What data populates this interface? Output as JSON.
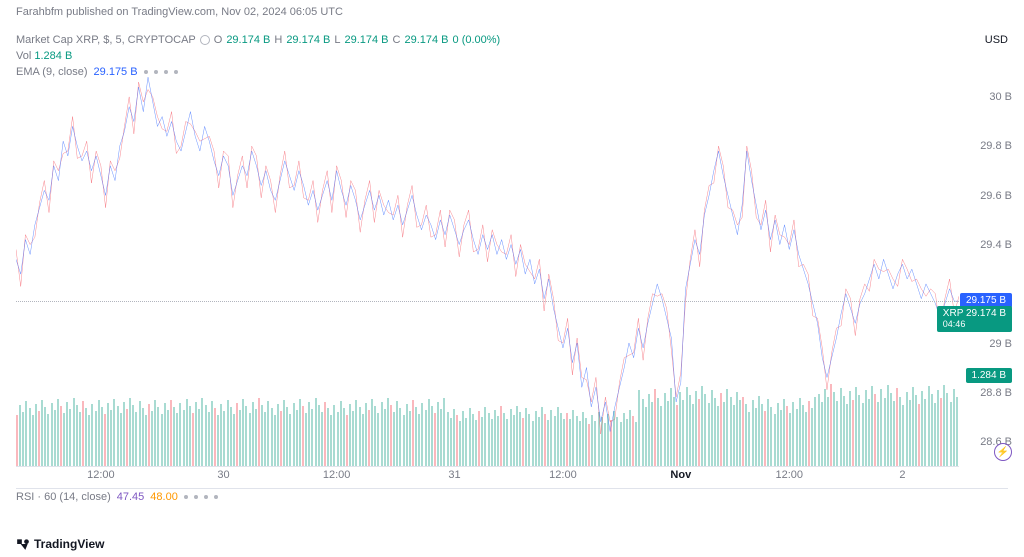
{
  "published": "Farahbfm published on TradingView.com, Nov 02, 2024 06:05 UTC",
  "symbol": {
    "name": "Market Cap XRP, $, 5, CRYPTOCAP",
    "o_label": "O",
    "o_val": "29.174 B",
    "h_label": "H",
    "h_val": "29.174 B",
    "l_label": "L",
    "l_val": "29.174 B",
    "c_label": "C",
    "c_val": "29.174 B",
    "pct": "0 (0.00%)"
  },
  "vol": {
    "label": "Vol",
    "value": "1.284 B"
  },
  "ema": {
    "label": "EMA (9, close)",
    "value": "29.175 B"
  },
  "currency": "USD",
  "y_axis": {
    "ticks": [
      {
        "label": "30 B",
        "value": 30.0
      },
      {
        "label": "29.8 B",
        "value": 29.8
      },
      {
        "label": "29.6 B",
        "value": 29.6
      },
      {
        "label": "29.4 B",
        "value": 29.4
      },
      {
        "label": "29 B",
        "value": 29.0
      },
      {
        "label": "28.8 B",
        "value": 28.8
      },
      {
        "label": "28.6 B",
        "value": 28.6
      }
    ],
    "min": 28.5,
    "max": 30.15
  },
  "x_axis": {
    "ticks": [
      {
        "label": "12:00",
        "pct": 9,
        "bold": false
      },
      {
        "label": "30",
        "pct": 22,
        "bold": false
      },
      {
        "label": "12:00",
        "pct": 34,
        "bold": false
      },
      {
        "label": "31",
        "pct": 46.5,
        "bold": false
      },
      {
        "label": "12:00",
        "pct": 58,
        "bold": false
      },
      {
        "label": "Nov",
        "pct": 70.5,
        "bold": true
      },
      {
        "label": "12:00",
        "pct": 82,
        "bold": false
      },
      {
        "label": "2",
        "pct": 94,
        "bold": false
      }
    ]
  },
  "price_tags": [
    {
      "text": "29.175 B",
      "bg": "#2962ff",
      "y_value": 29.175
    },
    {
      "text": "XRP  29.174 B",
      "bg": "#089981",
      "y_value": 29.12,
      "sub": "04:46"
    },
    {
      "text": "1.284 B",
      "bg": "#089981",
      "y_value": 28.87
    }
  ],
  "dotted_line_y": 29.174,
  "line_color_main": "#2962ff",
  "line_color_alt": "#f23645",
  "volume_fill": "#b2dfdb",
  "price_series": [
    [
      0,
      29.34
    ],
    [
      0.5,
      29.28
    ],
    [
      1,
      29.42
    ],
    [
      1.5,
      29.36
    ],
    [
      2,
      29.48
    ],
    [
      2.5,
      29.55
    ],
    [
      3,
      29.62
    ],
    [
      3.5,
      29.58
    ],
    [
      4,
      29.72
    ],
    [
      4.5,
      29.66
    ],
    [
      5,
      29.82
    ],
    [
      5.5,
      29.76
    ],
    [
      6,
      29.88
    ],
    [
      6.5,
      29.8
    ],
    [
      7,
      29.74
    ],
    [
      7.5,
      29.78
    ],
    [
      8,
      29.7
    ],
    [
      8.5,
      29.76
    ],
    [
      9,
      29.68
    ],
    [
      9.5,
      29.6
    ],
    [
      10,
      29.72
    ],
    [
      10.5,
      29.66
    ],
    [
      11,
      29.8
    ],
    [
      11.5,
      29.86
    ],
    [
      12,
      29.96
    ],
    [
      12.5,
      29.9
    ],
    [
      13,
      30.04
    ],
    [
      13.5,
      29.94
    ],
    [
      14,
      30.08
    ],
    [
      14.5,
      29.98
    ],
    [
      15,
      29.88
    ],
    [
      15.5,
      29.92
    ],
    [
      16,
      29.84
    ],
    [
      16.5,
      29.9
    ],
    [
      17,
      29.82
    ],
    [
      17.5,
      29.78
    ],
    [
      18,
      29.86
    ],
    [
      18.5,
      29.94
    ],
    [
      19,
      29.84
    ],
    [
      19.5,
      29.78
    ],
    [
      20,
      29.88
    ],
    [
      20.5,
      29.82
    ],
    [
      21,
      29.74
    ],
    [
      21.5,
      29.68
    ],
    [
      22,
      29.76
    ],
    [
      22.5,
      29.72
    ],
    [
      23,
      29.6
    ],
    [
      23.5,
      29.66
    ],
    [
      24,
      29.72
    ],
    [
      24.5,
      29.68
    ],
    [
      25,
      29.78
    ],
    [
      25.5,
      29.72
    ],
    [
      26,
      29.64
    ],
    [
      26.5,
      29.7
    ],
    [
      27,
      29.62
    ],
    [
      27.5,
      29.58
    ],
    [
      28,
      29.66
    ],
    [
      28.5,
      29.74
    ],
    [
      29,
      29.68
    ],
    [
      29.5,
      29.62
    ],
    [
      30,
      29.7
    ],
    [
      30.5,
      29.64
    ],
    [
      31,
      29.56
    ],
    [
      31.5,
      29.62
    ],
    [
      32,
      29.54
    ],
    [
      32.5,
      29.6
    ],
    [
      33,
      29.66
    ],
    [
      33.5,
      29.58
    ],
    [
      34,
      29.7
    ],
    [
      34.5,
      29.62
    ],
    [
      35,
      29.56
    ],
    [
      35.5,
      29.64
    ],
    [
      36,
      29.58
    ],
    [
      36.5,
      29.5
    ],
    [
      37,
      29.56
    ],
    [
      37.5,
      29.62
    ],
    [
      38,
      29.54
    ],
    [
      38.5,
      29.6
    ],
    [
      39,
      29.52
    ],
    [
      39.5,
      29.58
    ],
    [
      40,
      29.5
    ],
    [
      40.5,
      29.56
    ],
    [
      41,
      29.48
    ],
    [
      41.5,
      29.54
    ],
    [
      42,
      29.6
    ],
    [
      42.5,
      29.52
    ],
    [
      43,
      29.46
    ],
    [
      43.5,
      29.52
    ],
    [
      44,
      29.48
    ],
    [
      44.5,
      29.42
    ],
    [
      45,
      29.5
    ],
    [
      45.5,
      29.44
    ],
    [
      46,
      29.52
    ],
    [
      46.5,
      29.46
    ],
    [
      47,
      29.4
    ],
    [
      47.5,
      29.46
    ],
    [
      48,
      29.5
    ],
    [
      48.5,
      29.42
    ],
    [
      49,
      29.36
    ],
    [
      49.5,
      29.44
    ],
    [
      50,
      29.38
    ],
    [
      50.5,
      29.44
    ],
    [
      51,
      29.36
    ],
    [
      51.5,
      29.42
    ],
    [
      52,
      29.34
    ],
    [
      52.5,
      29.4
    ],
    [
      53,
      29.32
    ],
    [
      53.5,
      29.38
    ],
    [
      54,
      29.28
    ],
    [
      54.5,
      29.34
    ],
    [
      55,
      29.24
    ],
    [
      55.5,
      29.3
    ],
    [
      56,
      29.18
    ],
    [
      56.5,
      29.26
    ],
    [
      57,
      29.14
    ],
    [
      57.5,
      29.06
    ],
    [
      58,
      28.98
    ],
    [
      58.5,
      29.06
    ],
    [
      59,
      28.92
    ],
    [
      59.5,
      29.0
    ],
    [
      60,
      28.82
    ],
    [
      60.5,
      28.9
    ],
    [
      61,
      28.74
    ],
    [
      61.5,
      28.82
    ],
    [
      62,
      28.68
    ],
    [
      62.5,
      28.76
    ],
    [
      63,
      28.64
    ],
    [
      63.5,
      28.74
    ],
    [
      64,
      28.82
    ],
    [
      64.5,
      28.9
    ],
    [
      65,
      29.0
    ],
    [
      65.5,
      28.94
    ],
    [
      66,
      29.06
    ],
    [
      66.5,
      28.98
    ],
    [
      67,
      29.08
    ],
    [
      67.5,
      29.16
    ],
    [
      68,
      29.24
    ],
    [
      68.5,
      29.18
    ],
    [
      69,
      29.1
    ],
    [
      69.5,
      29.02
    ],
    [
      70,
      28.76
    ],
    [
      70.5,
      28.84
    ],
    [
      71,
      29.22
    ],
    [
      71.5,
      29.32
    ],
    [
      72,
      29.42
    ],
    [
      72.5,
      29.36
    ],
    [
      73,
      29.52
    ],
    [
      73.5,
      29.6
    ],
    [
      74,
      29.7
    ],
    [
      74.5,
      29.78
    ],
    [
      75,
      29.68
    ],
    [
      75.5,
      29.6
    ],
    [
      76,
      29.52
    ],
    [
      76.5,
      29.44
    ],
    [
      77,
      29.56
    ],
    [
      77.5,
      29.78
    ],
    [
      78,
      29.66
    ],
    [
      78.5,
      29.56
    ],
    [
      79,
      29.46
    ],
    [
      79.5,
      29.54
    ],
    [
      80,
      29.42
    ],
    [
      80.5,
      29.5
    ],
    [
      81,
      29.4
    ],
    [
      81.5,
      29.48
    ],
    [
      82,
      29.38
    ],
    [
      82.5,
      29.46
    ],
    [
      83,
      29.36
    ],
    [
      83.5,
      29.3
    ],
    [
      84,
      29.24
    ],
    [
      84.5,
      29.16
    ],
    [
      85,
      29.08
    ],
    [
      85.5,
      28.94
    ],
    [
      86,
      28.86
    ],
    [
      86.5,
      28.94
    ],
    [
      87,
      29.02
    ],
    [
      87.5,
      29.12
    ],
    [
      88,
      29.2
    ],
    [
      88.5,
      29.14
    ],
    [
      89,
      29.08
    ],
    [
      89.5,
      29.16
    ],
    [
      90,
      29.2
    ],
    [
      90.5,
      29.26
    ],
    [
      91,
      29.32
    ],
    [
      91.5,
      29.26
    ],
    [
      92,
      29.34
    ],
    [
      92.5,
      29.28
    ],
    [
      93,
      29.22
    ],
    [
      93.5,
      29.28
    ],
    [
      94,
      29.32
    ],
    [
      94.5,
      29.26
    ],
    [
      95,
      29.3
    ],
    [
      95.5,
      29.24
    ],
    [
      96,
      29.18
    ],
    [
      96.5,
      29.24
    ],
    [
      97,
      29.2
    ],
    [
      97.5,
      29.16
    ],
    [
      98,
      29.1
    ],
    [
      98.5,
      29.16
    ],
    [
      99,
      29.22
    ],
    [
      99.5,
      29.17
    ],
    [
      100,
      29.17
    ]
  ],
  "volume_baseline": [
    [
      0,
      0.7
    ],
    [
      45.5,
      0.7
    ],
    [
      45.5,
      0.62
    ],
    [
      58,
      0.62
    ],
    [
      58,
      0.58
    ],
    [
      66,
      0.58
    ],
    [
      66,
      0.82
    ],
    [
      77,
      0.82
    ],
    [
      77,
      0.72
    ],
    [
      85,
      0.72
    ],
    [
      85,
      0.84
    ],
    [
      100,
      0.84
    ]
  ],
  "rsi": {
    "label": "RSI · 60 (14, close)",
    "v1": "47.45",
    "v2": "48.00"
  },
  "watermark": "TradingView"
}
